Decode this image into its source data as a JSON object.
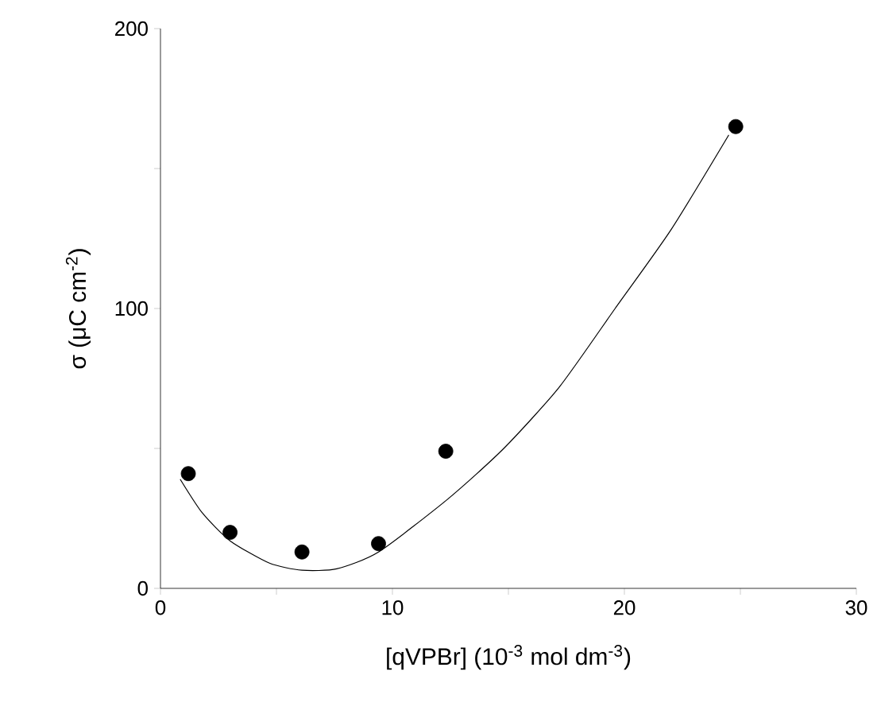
{
  "chart_data": {
    "type": "scatter",
    "xlabel": "[qVPBr] (10$^{-3}$ mol dm$^{-3}$)",
    "ylabel": "σ (μC cm$^{-2}$)",
    "xlim": [
      0,
      30
    ],
    "ylim": [
      0,
      200
    ],
    "xticks": [
      0,
      {
        "value": 5,
        "label": null
      },
      10,
      {
        "value": 15,
        "label": null
      },
      20,
      {
        "value": 25,
        "label": null
      },
      30
    ],
    "yticks": [
      0,
      {
        "value": 50,
        "label": null
      },
      100,
      {
        "value": 150,
        "label": null
      },
      200
    ],
    "grid": false,
    "series": [
      {
        "marker": "circle",
        "color": "#000000",
        "x": [
          1.2,
          3.0,
          6.1,
          9.4,
          12.3,
          24.8
        ],
        "values": [
          41,
          20,
          13,
          16,
          49,
          165
        ]
      },
      {
        "type": "line",
        "marker": "none",
        "line_style": "solid",
        "color": "#000000",
        "x": [
          0.85,
          1.8,
          3.0,
          4.7,
          6.1,
          7.6,
          9.4,
          12.4,
          14.8,
          17.2,
          19.6,
          22.0,
          24.5
        ],
        "values": [
          39,
          27,
          17,
          9,
          6.5,
          7,
          13,
          32,
          50,
          72,
          100,
          128,
          162
        ]
      }
    ]
  }
}
